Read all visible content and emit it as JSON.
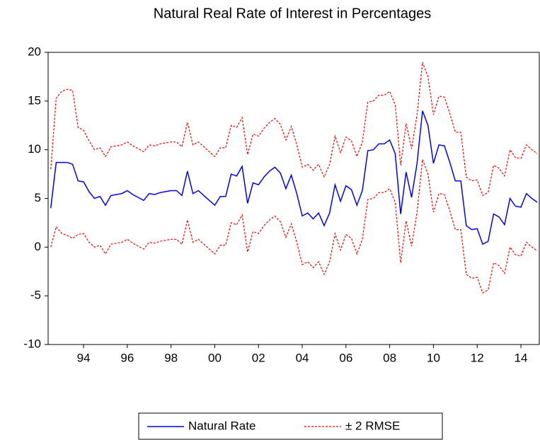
{
  "chart_data": {
    "type": "line",
    "title": "Natural Real Rate of Interest in Percentages",
    "x": [
      1992.5,
      1992.75,
      1993,
      1993.25,
      1993.5,
      1993.75,
      1994,
      1994.25,
      1994.5,
      1994.75,
      1995,
      1995.25,
      1995.5,
      1995.75,
      1996,
      1996.25,
      1996.5,
      1996.75,
      1997,
      1997.25,
      1997.5,
      1997.75,
      1998,
      1998.25,
      1998.5,
      1998.75,
      1999,
      1999.25,
      1999.5,
      1999.75,
      2000,
      2000.25,
      2000.5,
      2000.75,
      2001,
      2001.25,
      2001.5,
      2001.75,
      2002,
      2002.25,
      2002.5,
      2002.75,
      2003,
      2003.25,
      2003.5,
      2003.75,
      2004,
      2004.25,
      2004.5,
      2004.75,
      2005,
      2005.25,
      2005.5,
      2005.75,
      2006,
      2006.25,
      2006.5,
      2006.75,
      2007,
      2007.25,
      2007.5,
      2007.75,
      2008,
      2008.25,
      2008.5,
      2008.75,
      2009,
      2009.25,
      2009.5,
      2009.75,
      2010,
      2010.25,
      2010.5,
      2010.75,
      2011,
      2011.25,
      2011.5,
      2011.75,
      2012,
      2012.25,
      2012.5,
      2012.75,
      2013,
      2013.25,
      2013.5,
      2013.75,
      2014,
      2014.25,
      2014.5,
      2014.75
    ],
    "series": [
      {
        "name": "Natural Rate",
        "color": "#0000ff",
        "values": [
          4.0,
          8.7,
          8.7,
          8.7,
          8.5,
          6.8,
          6.7,
          5.7,
          5.0,
          5.2,
          4.3,
          5.3,
          5.4,
          5.5,
          5.8,
          5.4,
          5.1,
          4.8,
          5.5,
          5.4,
          5.6,
          5.7,
          5.8,
          5.8,
          5.3,
          7.8,
          5.5,
          5.8,
          5.3,
          4.8,
          4.3,
          5.2,
          5.2,
          7.5,
          7.3,
          8.3,
          4.5,
          6.6,
          6.4,
          7.2,
          7.8,
          8.2,
          7.6,
          6.0,
          7.4,
          5.5,
          3.2,
          3.5,
          2.9,
          3.5,
          2.2,
          3.5,
          6.4,
          4.7,
          6.3,
          5.9,
          4.3,
          5.8,
          9.9,
          10.0,
          10.6,
          10.6,
          11.0,
          9.6,
          3.4,
          7.7,
          5.1,
          8.6,
          14.0,
          12.5,
          8.6,
          10.5,
          10.4,
          8.7,
          6.8,
          6.8,
          2.2,
          1.8,
          1.9,
          0.3,
          0.6,
          3.4,
          3.1,
          2.3,
          5.0,
          4.2,
          4.1,
          5.5,
          5.0,
          4.6
        ]
      },
      {
        "name": "± 2 RMSE",
        "color": "#ff0000",
        "upper": [
          8.0,
          15.3,
          16.0,
          16.2,
          16.1,
          12.3,
          12.0,
          10.9,
          10.0,
          10.2,
          9.3,
          10.3,
          10.4,
          10.5,
          10.8,
          10.4,
          10.1,
          9.8,
          10.5,
          10.4,
          10.6,
          10.7,
          10.8,
          10.8,
          10.3,
          12.8,
          10.5,
          10.8,
          10.3,
          9.8,
          9.3,
          10.2,
          10.2,
          12.5,
          12.3,
          13.3,
          9.5,
          11.6,
          11.4,
          12.2,
          12.8,
          13.2,
          12.6,
          11.0,
          12.4,
          10.5,
          8.2,
          8.5,
          7.9,
          8.5,
          7.2,
          8.5,
          11.4,
          9.7,
          11.3,
          10.9,
          9.3,
          10.8,
          14.9,
          15.0,
          15.6,
          15.6,
          16.0,
          14.6,
          8.4,
          12.7,
          10.1,
          13.6,
          19.0,
          17.5,
          13.6,
          15.5,
          15.4,
          13.7,
          11.8,
          11.8,
          7.2,
          6.8,
          6.9,
          5.3,
          5.6,
          8.4,
          8.1,
          7.3,
          10.0,
          9.2,
          9.1,
          10.5,
          10.0,
          9.6
        ],
        "lower": [
          0.0,
          2.1,
          1.4,
          1.2,
          0.9,
          1.3,
          1.4,
          0.5,
          0.0,
          0.2,
          -0.7,
          0.3,
          0.4,
          0.5,
          0.8,
          0.4,
          0.1,
          -0.2,
          0.5,
          0.4,
          0.6,
          0.7,
          0.8,
          0.8,
          0.3,
          2.8,
          0.5,
          0.8,
          0.3,
          -0.2,
          -0.7,
          0.2,
          0.2,
          2.5,
          2.3,
          3.3,
          -0.5,
          1.6,
          1.4,
          2.2,
          2.8,
          3.2,
          2.6,
          1.0,
          2.4,
          0.5,
          -1.8,
          -1.5,
          -2.1,
          -1.5,
          -2.8,
          -1.5,
          1.4,
          -0.3,
          1.3,
          0.9,
          -0.7,
          0.8,
          4.9,
          5.0,
          5.6,
          5.6,
          6.0,
          4.6,
          -1.6,
          2.7,
          0.1,
          3.6,
          9.0,
          7.5,
          3.6,
          5.5,
          5.4,
          3.7,
          1.8,
          1.8,
          -2.8,
          -3.2,
          -3.1,
          -4.7,
          -4.4,
          -1.6,
          -1.9,
          -2.7,
          0.0,
          -0.8,
          -0.9,
          0.5,
          0.0,
          -0.4
        ]
      }
    ],
    "xlim": [
      1992.38,
      2014.84
    ],
    "xticks": [
      {
        "value": 1994,
        "label": "94"
      },
      {
        "value": 1996,
        "label": "96"
      },
      {
        "value": 1998,
        "label": "98"
      },
      {
        "value": 2000,
        "label": "00"
      },
      {
        "value": 2002,
        "label": "02"
      },
      {
        "value": 2004,
        "label": "04"
      },
      {
        "value": 2006,
        "label": "06"
      },
      {
        "value": 2008,
        "label": "08"
      },
      {
        "value": 2010,
        "label": "10"
      },
      {
        "value": 2012,
        "label": "12"
      },
      {
        "value": 2014,
        "label": "14"
      }
    ],
    "ylim": [
      -10,
      20
    ],
    "yticks": [
      -10,
      -5,
      0,
      5,
      10,
      15,
      20
    ],
    "grid": false
  }
}
